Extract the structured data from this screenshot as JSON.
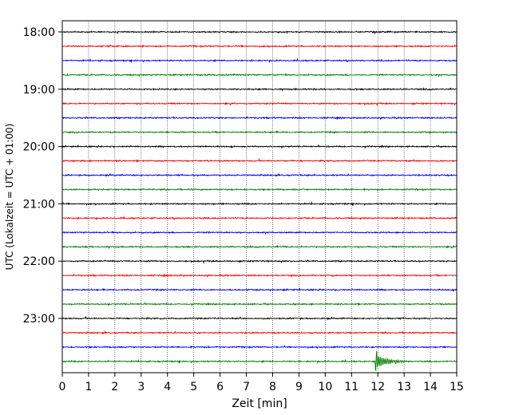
{
  "chart_data": {
    "type": "line",
    "title": "",
    "xlabel": "Zeit  [min]",
    "ylabel": "UTC (Lokalzeit = UTC + 01:00)",
    "xlim": [
      0,
      15
    ],
    "x_ticks": [
      "0",
      "1",
      "2",
      "3",
      "4",
      "5",
      "6",
      "7",
      "8",
      "9",
      "10",
      "11",
      "12",
      "13",
      "14",
      "15"
    ],
    "y_tick_labels": [
      "18:00",
      "19:00",
      "20:00",
      "21:00",
      "22:00",
      "23:00"
    ],
    "trace_colors": [
      "#000000",
      "#ff0000",
      "#0000ff",
      "#008000"
    ],
    "traces_start": "18:00",
    "trace_interval_minutes": 15,
    "trace_count": 24,
    "grid": "vertical dotted lines at each minute",
    "annotations": [
      {
        "trace": "23:45",
        "x_min": 11.9,
        "description": "seismic event spike"
      }
    ]
  }
}
